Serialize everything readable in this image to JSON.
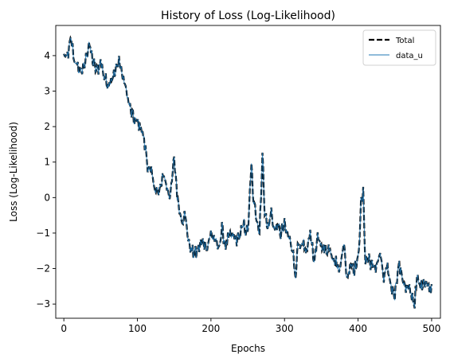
{
  "chart_data": {
    "type": "line",
    "title": "History of Loss (Log-Likelihood)",
    "xlabel": "Epochs",
    "ylabel": "Loss (Log-Likelihood)",
    "xlim": [
      -11,
      512
    ],
    "ylim": [
      -3.4,
      4.85
    ],
    "xticks": [
      0,
      100,
      200,
      300,
      400,
      500
    ],
    "yticks": [
      -3,
      -2,
      -1,
      0,
      1,
      2,
      3,
      4
    ],
    "legend_position": "upper-right",
    "grid": false,
    "anchors": [
      [
        0,
        4.0
      ],
      [
        4,
        3.9
      ],
      [
        10,
        4.45
      ],
      [
        14,
        3.9
      ],
      [
        20,
        3.6
      ],
      [
        27,
        3.6
      ],
      [
        34,
        4.35
      ],
      [
        40,
        3.8
      ],
      [
        45,
        3.55
      ],
      [
        50,
        3.85
      ],
      [
        55,
        3.4
      ],
      [
        60,
        3.2
      ],
      [
        65,
        3.4
      ],
      [
        70,
        3.5
      ],
      [
        75,
        3.9
      ],
      [
        80,
        3.4
      ],
      [
        84,
        3.1
      ],
      [
        90,
        2.5
      ],
      [
        95,
        2.2
      ],
      [
        100,
        2.1
      ],
      [
        105,
        2.0
      ],
      [
        110,
        1.5
      ],
      [
        115,
        0.8
      ],
      [
        120,
        0.6
      ],
      [
        125,
        0.2
      ],
      [
        130,
        0.1
      ],
      [
        135,
        0.7
      ],
      [
        140,
        0.3
      ],
      [
        145,
        0.05
      ],
      [
        150,
        1.1
      ],
      [
        155,
        -0.1
      ],
      [
        160,
        -0.6
      ],
      [
        165,
        -0.5
      ],
      [
        170,
        -1.3
      ],
      [
        175,
        -1.55
      ],
      [
        180,
        -1.55
      ],
      [
        185,
        -1.35
      ],
      [
        190,
        -1.25
      ],
      [
        195,
        -1.4
      ],
      [
        200,
        -1.0
      ],
      [
        205,
        -1.2
      ],
      [
        210,
        -1.45
      ],
      [
        215,
        -0.9
      ],
      [
        220,
        -1.35
      ],
      [
        225,
        -1.1
      ],
      [
        230,
        -1.1
      ],
      [
        235,
        -1.2
      ],
      [
        240,
        -1.0
      ],
      [
        245,
        -0.8
      ],
      [
        250,
        -1.0
      ],
      [
        255,
        0.9
      ],
      [
        258,
        -0.2
      ],
      [
        262,
        -0.5
      ],
      [
        266,
        -1.0
      ],
      [
        270,
        1.2
      ],
      [
        273,
        -0.3
      ],
      [
        277,
        -0.9
      ],
      [
        282,
        -0.4
      ],
      [
        286,
        -0.9
      ],
      [
        290,
        -0.8
      ],
      [
        295,
        -1.0
      ],
      [
        300,
        -0.8
      ],
      [
        305,
        -1.1
      ],
      [
        310,
        -1.3
      ],
      [
        315,
        -2.2
      ],
      [
        318,
        -1.4
      ],
      [
        322,
        -1.5
      ],
      [
        326,
        -1.3
      ],
      [
        330,
        -1.6
      ],
      [
        335,
        -0.9
      ],
      [
        340,
        -1.8
      ],
      [
        345,
        -1.2
      ],
      [
        350,
        -1.3
      ],
      [
        355,
        -1.5
      ],
      [
        360,
        -1.4
      ],
      [
        365,
        -1.6
      ],
      [
        370,
        -1.8
      ],
      [
        375,
        -2.1
      ],
      [
        380,
        -1.2
      ],
      [
        385,
        -2.3
      ],
      [
        390,
        -1.8
      ],
      [
        395,
        -2.0
      ],
      [
        400,
        -1.8
      ],
      [
        404,
        -0.2
      ],
      [
        407,
        0.1
      ],
      [
        410,
        -1.8
      ],
      [
        415,
        -1.7
      ],
      [
        420,
        -2.0
      ],
      [
        425,
        -1.9
      ],
      [
        430,
        -1.6
      ],
      [
        435,
        -2.3
      ],
      [
        440,
        -2.0
      ],
      [
        445,
        -2.5
      ],
      [
        450,
        -2.7
      ],
      [
        455,
        -1.9
      ],
      [
        460,
        -2.2
      ],
      [
        465,
        -2.6
      ],
      [
        470,
        -2.6
      ],
      [
        474,
        -2.8
      ],
      [
        477,
        -3.0
      ],
      [
        480,
        -2.3
      ],
      [
        485,
        -2.5
      ],
      [
        490,
        -2.3
      ],
      [
        495,
        -2.5
      ],
      [
        500,
        -2.55
      ]
    ],
    "series": [
      {
        "name": "Total",
        "color": "#000000",
        "style": "dashed"
      },
      {
        "name": "data_u",
        "color": "#1f77b4",
        "style": "solid"
      }
    ]
  }
}
